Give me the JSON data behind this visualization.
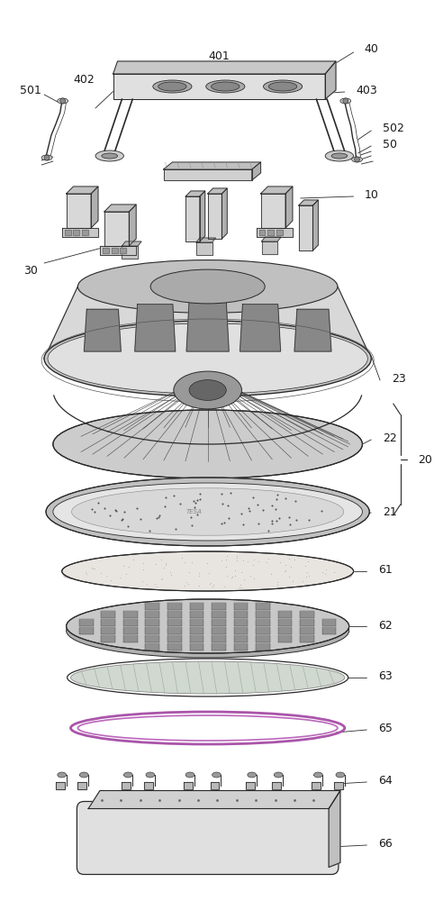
{
  "bg_color": "#ffffff",
  "line_color": "#2a2a2a",
  "label_color": "#1a1a1a",
  "fig_width": 4.82,
  "fig_height": 10.0,
  "dpi": 100
}
